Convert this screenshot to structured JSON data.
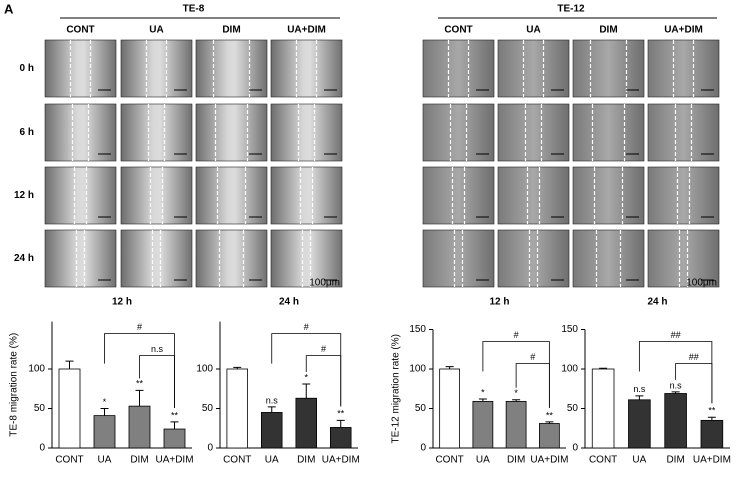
{
  "figure": {
    "panel_label": "A",
    "rows": [
      "0 h",
      "6 h",
      "12 h",
      "24 h"
    ],
    "groups": [
      {
        "title": "TE-8",
        "columns": [
          "CONT",
          "UA",
          "DIM",
          "UA+DIM"
        ],
        "scale_bar": "100μm"
      },
      {
        "title": "TE-12",
        "columns": [
          "CONT",
          "UA",
          "DIM",
          "UA+DIM"
        ],
        "scale_bar": "100μm"
      }
    ]
  },
  "chart_data": [
    {
      "type": "bar",
      "title": "12 h",
      "y_label": "TE-8 migration rate (%)",
      "categories": [
        "CONT",
        "UA",
        "DIM",
        "UA+DIM"
      ],
      "values": [
        100,
        41,
        53,
        24
      ],
      "errors": [
        10,
        9,
        20,
        9
      ],
      "colors": [
        "#ffffff",
        "#808080",
        "#808080",
        "#808080"
      ],
      "significance": [
        null,
        "*",
        "**",
        "**"
      ],
      "brackets": [
        {
          "from": 1,
          "to": 3,
          "label": "#"
        },
        {
          "from": 2,
          "to": 3,
          "label": "n.s"
        }
      ],
      "ylim": [
        0,
        160
      ],
      "yticks": [
        0,
        50,
        100
      ]
    },
    {
      "type": "bar",
      "title": "24 h",
      "categories": [
        "CONT",
        "UA",
        "DIM",
        "UA+DIM"
      ],
      "values": [
        100,
        45,
        63,
        26
      ],
      "errors": [
        2,
        7,
        18,
        9
      ],
      "colors": [
        "#ffffff",
        "#333333",
        "#333333",
        "#333333"
      ],
      "significance": [
        null,
        "n.s",
        "*",
        "**"
      ],
      "brackets": [
        {
          "from": 1,
          "to": 3,
          "label": "#"
        },
        {
          "from": 2,
          "to": 3,
          "label": "#"
        }
      ],
      "ylim": [
        0,
        160
      ],
      "yticks": [
        0,
        50,
        100
      ]
    },
    {
      "type": "bar",
      "title": "12 h",
      "y_label": "TE-12 migration rate (%)",
      "categories": [
        "CONT",
        "UA",
        "DIM",
        "UA+DIM"
      ],
      "values": [
        100,
        59,
        59,
        31
      ],
      "errors": [
        3,
        3,
        2,
        2
      ],
      "colors": [
        "#ffffff",
        "#808080",
        "#808080",
        "#808080"
      ],
      "significance": [
        null,
        "*",
        "*",
        "**"
      ],
      "brackets": [
        {
          "from": 1,
          "to": 3,
          "label": "#"
        },
        {
          "from": 2,
          "to": 3,
          "label": "#"
        }
      ],
      "ylim": [
        0,
        150
      ],
      "yticks": [
        0,
        50,
        100,
        150
      ]
    },
    {
      "type": "bar",
      "title": "24 h",
      "categories": [
        "CONT",
        "UA",
        "DIM",
        "UA+DIM"
      ],
      "values": [
        100,
        61,
        69,
        35
      ],
      "errors": [
        1,
        5,
        2,
        4
      ],
      "colors": [
        "#ffffff",
        "#333333",
        "#333333",
        "#333333"
      ],
      "significance": [
        null,
        "n.s",
        "n.s",
        "**"
      ],
      "brackets": [
        {
          "from": 1,
          "to": 3,
          "label": "##"
        },
        {
          "from": 2,
          "to": 3,
          "label": "##"
        }
      ],
      "ylim": [
        0,
        150
      ],
      "yticks": [
        0,
        50,
        100,
        150
      ]
    }
  ]
}
